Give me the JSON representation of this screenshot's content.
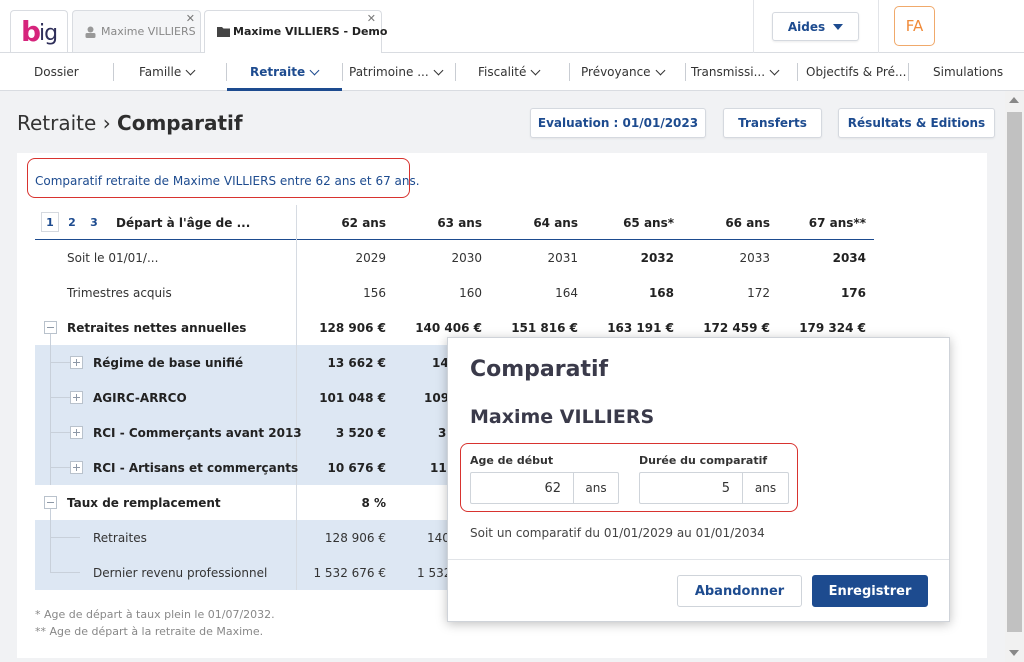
{
  "app": {
    "logo": "big",
    "tabs": [
      {
        "label": "Maxime VILLIERS",
        "icon": "user-icon"
      },
      {
        "label": "Maxime VILLIERS - Demo",
        "icon": "folder-icon"
      }
    ],
    "aides_label": "Aides",
    "avatar_initials": "FA"
  },
  "nav": {
    "items": [
      {
        "label": "Dossier",
        "chevron": false
      },
      {
        "label": "Famille",
        "chevron": true
      },
      {
        "label": "Retraite",
        "chevron": true,
        "active": true
      },
      {
        "label": "Patrimoine ...",
        "chevron": true
      },
      {
        "label": "Fiscalité",
        "chevron": true
      },
      {
        "label": "Prévoyance",
        "chevron": true
      },
      {
        "label": "Transmissi...",
        "chevron": true
      },
      {
        "label": "Objectifs & Pré...",
        "chevron": false
      },
      {
        "label": "Simulations",
        "chevron": false
      }
    ]
  },
  "header": {
    "breadcrumb_parent": "Retraite",
    "breadcrumb_sep": "›",
    "title": "Comparatif",
    "buttons": [
      "Evaluation : 01/01/2023",
      "Transferts",
      "Résultats & Editions"
    ]
  },
  "intro": "Comparatif retraite de Maxime VILLIERS entre 62 ans et 67 ans.",
  "table": {
    "pages": [
      "1",
      "2",
      "3"
    ],
    "corner_label": "Départ à l'âge de ...",
    "columns": [
      "62 ans",
      "63 ans",
      "64 ans",
      "65 ans*",
      "66 ans",
      "67 ans**"
    ],
    "rows": {
      "soit_le": {
        "label": "Soit le 01/01/...",
        "values": [
          "2029",
          "2030",
          "2031",
          "2032",
          "2033",
          "2034"
        ]
      },
      "trimestres": {
        "label": "Trimestres acquis",
        "values": [
          "156",
          "160",
          "164",
          "168",
          "172",
          "176"
        ]
      },
      "retraites_nettes": {
        "label": "Retraites nettes annuelles",
        "values": [
          "128 906 €",
          "140 406 €",
          "151 816 €",
          "163 191 €",
          "172 459 €",
          "179 324 €"
        ]
      },
      "regime_base": {
        "label": "Régime de base unifié",
        "values": [
          "13 662 €",
          "14"
        ]
      },
      "agirc": {
        "label": "AGIRC-ARRCO",
        "values": [
          "101 048 €",
          "109"
        ]
      },
      "rci_2013": {
        "label": "RCI - Commerçants avant 2013",
        "values": [
          "3 520 €",
          "3"
        ]
      },
      "rci_artisans": {
        "label": "RCI - Artisans et commerçants",
        "values": [
          "10 676 €",
          "11"
        ]
      },
      "taux": {
        "label": "Taux de remplacement",
        "values": [
          "8 %"
        ]
      },
      "retraites": {
        "label": "Retraites",
        "values": [
          "128 906 €",
          "140"
        ]
      },
      "dernier_revenu": {
        "label": "Dernier revenu professionnel",
        "values": [
          "1 532 676 €",
          "1 532"
        ]
      }
    }
  },
  "footnotes": [
    "* Age de départ à taux plein le 01/07/2032.",
    "** Age de départ à la retraite de Maxime."
  ],
  "modal": {
    "title": "Comparatif",
    "subtitle": "Maxime VILLIERS",
    "age_label": "Age de début",
    "age_value": "62",
    "age_unit": "ans",
    "duree_label": "Durée du comparatif",
    "duree_value": "5",
    "duree_unit": "ans",
    "info": "Soit un comparatif du 01/01/2029 au 01/01/2034",
    "cancel_label": "Abandonner",
    "save_label": "Enregistrer"
  },
  "colors": {
    "accent": "#1d4b8f",
    "brand_pink": "#d6247c",
    "highlight_red": "#d8332f",
    "row_blue": "#dde7f3",
    "avatar_orange": "#f08b3a"
  }
}
